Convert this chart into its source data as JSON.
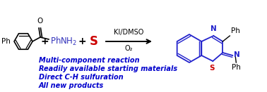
{
  "background_color": "#ffffff",
  "reactant2_color": "#3333bb",
  "reactant3_color": "#cc0000",
  "arrow_label_top": "KI/DMSO",
  "arrow_label_bottom": "O₂",
  "bullet_lines": [
    "Multi-component reaction",
    "Readily available starting materials",
    "Direct C-H sulfuration",
    "All new products"
  ],
  "bullet_color": "#0000cc",
  "product_ring_color": "#2222cc",
  "product_atom_N_color": "#2222cc",
  "product_atom_S_color": "#cc0000",
  "product_bond_color": "#2222cc",
  "figsize": [
    3.78,
    1.31
  ],
  "dpi": 100
}
